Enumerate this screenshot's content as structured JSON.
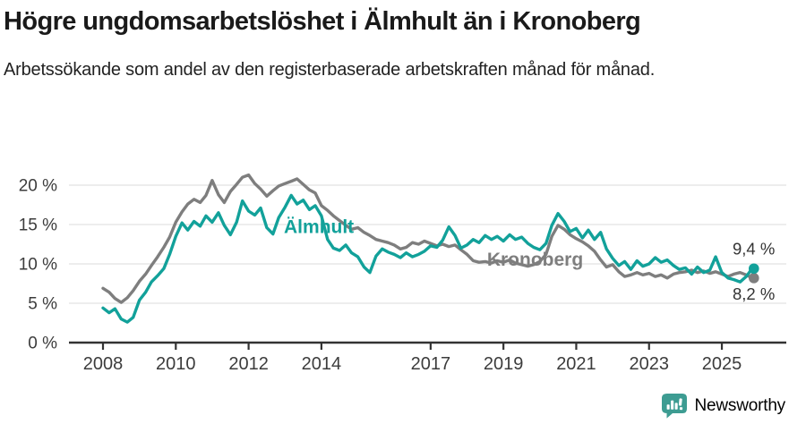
{
  "header": {
    "title": "Högre ungdomsarbetslöshet i Älmhult än i Kronoberg",
    "subtitle": "Arbetssökande som andel av den registerbaserade arbetskraften månad för månad."
  },
  "colors": {
    "almhult_teal": "#12a19a",
    "kronoberg_gray": "#7e7e7e",
    "axis": "#333333",
    "tick_text": "#3c3c3c",
    "grid": "#e2e2e2",
    "annotation_text": "#333333",
    "logo_teal": "#3d9c92"
  },
  "footer": {
    "brand": "Newsworthy",
    "logo_icon": "newsworthy-speech-bubble-bar-chart-icon"
  },
  "chart_data": {
    "type": "line",
    "title": "Högre ungdomsarbetslöshet i Älmhult än i Kronoberg",
    "xlabel": "",
    "ylabel": "",
    "x_unit": "year (monthly data)",
    "xlim": [
      2007.6,
      2026.3
    ],
    "ylim": [
      0,
      22
    ],
    "grid": "horizontal",
    "legend_position": "inline-labels",
    "yticks": [
      {
        "v": 0,
        "label": "0 %"
      },
      {
        "v": 5,
        "label": "5 %"
      },
      {
        "v": 10,
        "label": "10 %"
      },
      {
        "v": 15,
        "label": "15 %"
      },
      {
        "v": 20,
        "label": "20 %"
      }
    ],
    "xticks": [
      {
        "v": 2008,
        "label": "2008"
      },
      {
        "v": 2010,
        "label": "2010"
      },
      {
        "v": 2012,
        "label": "2012"
      },
      {
        "v": 2014,
        "label": "2014"
      },
      {
        "v": 2017,
        "label": "2017"
      },
      {
        "v": 2019,
        "label": "2019"
      },
      {
        "v": 2021,
        "label": "2021"
      },
      {
        "v": 2023,
        "label": "2023"
      },
      {
        "v": 2025,
        "label": "2025"
      }
    ],
    "series": [
      {
        "name": "Kronoberg",
        "color": "#7e7e7e",
        "end_label": "8,2 %",
        "label_anchor": {
          "x": 2018.55,
          "y": 9.8
        },
        "points": [
          [
            2008.0,
            6.9
          ],
          [
            2008.17,
            6.4
          ],
          [
            2008.33,
            5.6
          ],
          [
            2008.5,
            5.1
          ],
          [
            2008.67,
            5.7
          ],
          [
            2008.83,
            6.6
          ],
          [
            2009.0,
            7.8
          ],
          [
            2009.17,
            8.7
          ],
          [
            2009.33,
            9.8
          ],
          [
            2009.5,
            10.9
          ],
          [
            2009.67,
            12.1
          ],
          [
            2009.83,
            13.4
          ],
          [
            2010.0,
            15.3
          ],
          [
            2010.17,
            16.6
          ],
          [
            2010.33,
            17.6
          ],
          [
            2010.5,
            18.2
          ],
          [
            2010.67,
            17.8
          ],
          [
            2010.83,
            18.7
          ],
          [
            2011.0,
            20.6
          ],
          [
            2011.17,
            18.8
          ],
          [
            2011.33,
            17.8
          ],
          [
            2011.5,
            19.2
          ],
          [
            2011.67,
            20.1
          ],
          [
            2011.83,
            21.0
          ],
          [
            2012.0,
            21.3
          ],
          [
            2012.17,
            20.2
          ],
          [
            2012.33,
            19.5
          ],
          [
            2012.5,
            18.6
          ],
          [
            2012.67,
            19.3
          ],
          [
            2012.83,
            19.9
          ],
          [
            2013.0,
            20.2
          ],
          [
            2013.17,
            20.5
          ],
          [
            2013.33,
            20.8
          ],
          [
            2013.5,
            20.1
          ],
          [
            2013.67,
            19.4
          ],
          [
            2013.83,
            19.0
          ],
          [
            2014.0,
            17.4
          ],
          [
            2014.17,
            16.8
          ],
          [
            2014.33,
            16.1
          ],
          [
            2014.5,
            15.5
          ],
          [
            2014.67,
            14.9
          ],
          [
            2014.83,
            14.4
          ],
          [
            2015.0,
            14.6
          ],
          [
            2015.17,
            14.0
          ],
          [
            2015.33,
            13.6
          ],
          [
            2015.5,
            13.1
          ],
          [
            2015.67,
            12.9
          ],
          [
            2015.83,
            12.7
          ],
          [
            2016.0,
            12.4
          ],
          [
            2016.17,
            11.9
          ],
          [
            2016.33,
            12.1
          ],
          [
            2016.5,
            12.7
          ],
          [
            2016.67,
            12.5
          ],
          [
            2016.83,
            12.9
          ],
          [
            2017.0,
            12.6
          ],
          [
            2017.17,
            12.3
          ],
          [
            2017.33,
            12.5
          ],
          [
            2017.5,
            12.2
          ],
          [
            2017.67,
            12.4
          ],
          [
            2017.83,
            11.8
          ],
          [
            2018.0,
            11.2
          ],
          [
            2018.17,
            10.4
          ],
          [
            2018.33,
            10.2
          ],
          [
            2018.5,
            10.3
          ],
          [
            2018.67,
            10.1
          ],
          [
            2018.83,
            10.4
          ],
          [
            2019.0,
            10.2
          ],
          [
            2019.17,
            10.5
          ],
          [
            2019.33,
            10.1
          ],
          [
            2019.5,
            9.9
          ],
          [
            2019.67,
            9.7
          ],
          [
            2019.83,
            9.9
          ],
          [
            2020.0,
            10.3
          ],
          [
            2020.17,
            11.2
          ],
          [
            2020.33,
            13.5
          ],
          [
            2020.5,
            14.9
          ],
          [
            2020.67,
            14.4
          ],
          [
            2020.83,
            13.7
          ],
          [
            2021.0,
            13.2
          ],
          [
            2021.17,
            12.8
          ],
          [
            2021.33,
            12.3
          ],
          [
            2021.5,
            11.6
          ],
          [
            2021.67,
            10.5
          ],
          [
            2021.83,
            9.6
          ],
          [
            2022.0,
            9.9
          ],
          [
            2022.17,
            9.0
          ],
          [
            2022.33,
            8.4
          ],
          [
            2022.5,
            8.6
          ],
          [
            2022.67,
            8.9
          ],
          [
            2022.83,
            8.6
          ],
          [
            2023.0,
            8.8
          ],
          [
            2023.17,
            8.4
          ],
          [
            2023.33,
            8.6
          ],
          [
            2023.5,
            8.2
          ],
          [
            2023.67,
            8.7
          ],
          [
            2023.83,
            8.9
          ],
          [
            2024.0,
            9.0
          ],
          [
            2024.17,
            9.2
          ],
          [
            2024.33,
            8.9
          ],
          [
            2024.5,
            9.1
          ],
          [
            2024.67,
            8.8
          ],
          [
            2024.83,
            9.0
          ],
          [
            2025.0,
            8.7
          ],
          [
            2025.17,
            8.4
          ],
          [
            2025.33,
            8.7
          ],
          [
            2025.5,
            8.9
          ],
          [
            2025.67,
            8.6
          ],
          [
            2025.83,
            8.2
          ]
        ]
      },
      {
        "name": "Älmhult",
        "color": "#12a19a",
        "end_label": "9,4 %",
        "label_anchor": {
          "x": 2012.97,
          "y": 13.9
        },
        "points": [
          [
            2008.0,
            4.4
          ],
          [
            2008.17,
            3.8
          ],
          [
            2008.33,
            4.3
          ],
          [
            2008.5,
            3.0
          ],
          [
            2008.67,
            2.6
          ],
          [
            2008.83,
            3.2
          ],
          [
            2009.0,
            5.4
          ],
          [
            2009.17,
            6.4
          ],
          [
            2009.33,
            7.7
          ],
          [
            2009.5,
            8.5
          ],
          [
            2009.67,
            9.4
          ],
          [
            2009.83,
            11.2
          ],
          [
            2010.0,
            13.5
          ],
          [
            2010.17,
            15.2
          ],
          [
            2010.33,
            14.3
          ],
          [
            2010.5,
            15.4
          ],
          [
            2010.67,
            14.8
          ],
          [
            2010.83,
            16.1
          ],
          [
            2011.0,
            15.3
          ],
          [
            2011.17,
            16.5
          ],
          [
            2011.33,
            14.9
          ],
          [
            2011.5,
            13.7
          ],
          [
            2011.67,
            15.3
          ],
          [
            2011.83,
            18.0
          ],
          [
            2012.0,
            16.7
          ],
          [
            2012.17,
            16.2
          ],
          [
            2012.33,
            17.1
          ],
          [
            2012.5,
            14.6
          ],
          [
            2012.67,
            13.8
          ],
          [
            2012.83,
            15.9
          ],
          [
            2013.0,
            17.2
          ],
          [
            2013.17,
            18.7
          ],
          [
            2013.33,
            17.6
          ],
          [
            2013.5,
            18.1
          ],
          [
            2013.67,
            16.9
          ],
          [
            2013.83,
            17.4
          ],
          [
            2014.0,
            16.1
          ],
          [
            2014.17,
            13.1
          ],
          [
            2014.33,
            12.0
          ],
          [
            2014.5,
            11.7
          ],
          [
            2014.67,
            12.4
          ],
          [
            2014.83,
            11.4
          ],
          [
            2015.0,
            10.9
          ],
          [
            2015.17,
            9.6
          ],
          [
            2015.33,
            8.9
          ],
          [
            2015.5,
            11.0
          ],
          [
            2015.67,
            11.9
          ],
          [
            2015.83,
            11.5
          ],
          [
            2016.0,
            11.2
          ],
          [
            2016.17,
            10.8
          ],
          [
            2016.33,
            11.4
          ],
          [
            2016.5,
            10.9
          ],
          [
            2016.67,
            11.2
          ],
          [
            2016.83,
            11.6
          ],
          [
            2017.0,
            12.3
          ],
          [
            2017.17,
            12.1
          ],
          [
            2017.33,
            13.0
          ],
          [
            2017.5,
            14.7
          ],
          [
            2017.67,
            13.6
          ],
          [
            2017.83,
            12.0
          ],
          [
            2018.0,
            12.4
          ],
          [
            2018.17,
            13.1
          ],
          [
            2018.33,
            12.7
          ],
          [
            2018.5,
            13.6
          ],
          [
            2018.67,
            13.1
          ],
          [
            2018.83,
            13.5
          ],
          [
            2019.0,
            12.9
          ],
          [
            2019.17,
            13.7
          ],
          [
            2019.33,
            13.1
          ],
          [
            2019.5,
            13.4
          ],
          [
            2019.67,
            12.6
          ],
          [
            2019.83,
            12.1
          ],
          [
            2020.0,
            11.8
          ],
          [
            2020.17,
            12.6
          ],
          [
            2020.33,
            14.9
          ],
          [
            2020.5,
            16.4
          ],
          [
            2020.67,
            15.4
          ],
          [
            2020.83,
            14.1
          ],
          [
            2021.0,
            14.5
          ],
          [
            2021.17,
            13.3
          ],
          [
            2021.33,
            14.3
          ],
          [
            2021.5,
            13.1
          ],
          [
            2021.67,
            14.0
          ],
          [
            2021.83,
            11.9
          ],
          [
            2022.0,
            10.7
          ],
          [
            2022.17,
            9.8
          ],
          [
            2022.33,
            10.3
          ],
          [
            2022.5,
            9.3
          ],
          [
            2022.67,
            10.4
          ],
          [
            2022.83,
            9.7
          ],
          [
            2023.0,
            10.0
          ],
          [
            2023.17,
            10.8
          ],
          [
            2023.33,
            10.2
          ],
          [
            2023.5,
            10.5
          ],
          [
            2023.67,
            9.8
          ],
          [
            2023.83,
            9.3
          ],
          [
            2024.0,
            9.5
          ],
          [
            2024.17,
            8.7
          ],
          [
            2024.33,
            9.6
          ],
          [
            2024.5,
            8.9
          ],
          [
            2024.67,
            9.2
          ],
          [
            2024.83,
            10.9
          ],
          [
            2025.0,
            8.9
          ],
          [
            2025.17,
            8.2
          ],
          [
            2025.33,
            8.0
          ],
          [
            2025.5,
            7.7
          ],
          [
            2025.67,
            8.4
          ],
          [
            2025.83,
            9.4
          ]
        ]
      }
    ]
  }
}
